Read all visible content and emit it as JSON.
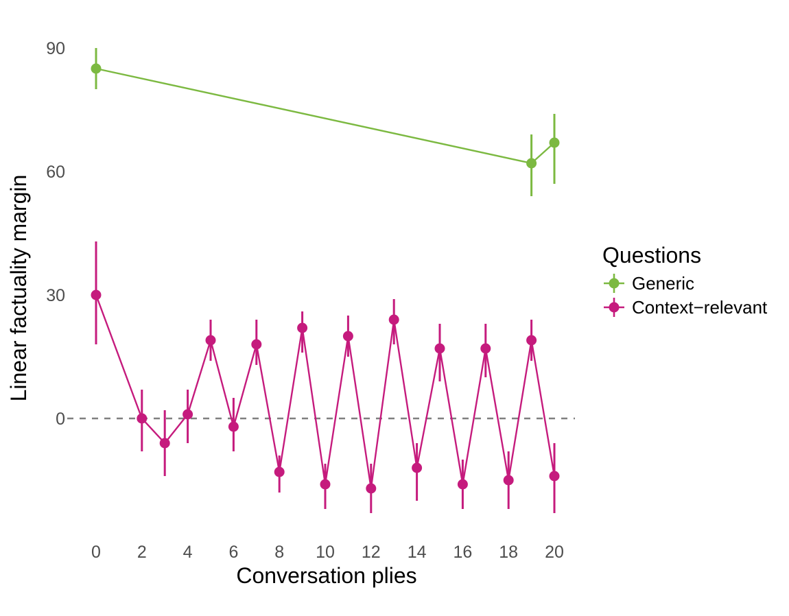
{
  "chart_data": {
    "type": "line",
    "title": "",
    "xlabel": "Conversation plies",
    "ylabel": "Linear factuality margin",
    "x_ticks": [
      0,
      2,
      4,
      6,
      8,
      10,
      12,
      14,
      16,
      18,
      20
    ],
    "y_ticks": [
      0,
      30,
      60,
      90
    ],
    "xlim": [
      -1.3,
      21
    ],
    "ylim": [
      -28,
      99
    ],
    "grid": "off",
    "reference_line": {
      "y": 0,
      "style": "dashed",
      "color": "#7F7F7F"
    },
    "legend": {
      "title": "Questions",
      "position": "right",
      "items": [
        {
          "label": "Generic",
          "color": "#7CB941"
        },
        {
          "label": "Context−relevant",
          "color": "#C51B7D"
        }
      ]
    },
    "series": [
      {
        "name": "Generic",
        "color": "#7CB941",
        "points": [
          {
            "x": 0,
            "y": 85,
            "lo": 80,
            "hi": 90
          },
          {
            "x": 19,
            "y": 62,
            "lo": 54,
            "hi": 69
          },
          {
            "x": 20,
            "y": 67,
            "lo": 57,
            "hi": 74
          }
        ]
      },
      {
        "name": "Context−relevant",
        "color": "#C51B7D",
        "points": [
          {
            "x": 0,
            "y": 30,
            "lo": 18,
            "hi": 43
          },
          {
            "x": 2,
            "y": 0,
            "lo": -8,
            "hi": 7
          },
          {
            "x": 3,
            "y": -6,
            "lo": -14,
            "hi": 2
          },
          {
            "x": 4,
            "y": 1,
            "lo": -6,
            "hi": 7
          },
          {
            "x": 5,
            "y": 19,
            "lo": 14,
            "hi": 24
          },
          {
            "x": 6,
            "y": -2,
            "lo": -8,
            "hi": 5
          },
          {
            "x": 7,
            "y": 18,
            "lo": 13,
            "hi": 24
          },
          {
            "x": 8,
            "y": -13,
            "lo": -18,
            "hi": -9
          },
          {
            "x": 9,
            "y": 22,
            "lo": 16,
            "hi": 26
          },
          {
            "x": 10,
            "y": -16,
            "lo": -22,
            "hi": -11
          },
          {
            "x": 11,
            "y": 20,
            "lo": 15,
            "hi": 25
          },
          {
            "x": 12,
            "y": -17,
            "lo": -23,
            "hi": -11
          },
          {
            "x": 13,
            "y": 24,
            "lo": 18,
            "hi": 29
          },
          {
            "x": 14,
            "y": -12,
            "lo": -20,
            "hi": -6
          },
          {
            "x": 15,
            "y": 17,
            "lo": 9,
            "hi": 23
          },
          {
            "x": 16,
            "y": -16,
            "lo": -22,
            "hi": -10
          },
          {
            "x": 17,
            "y": 17,
            "lo": 10,
            "hi": 23
          },
          {
            "x": 18,
            "y": -15,
            "lo": -22,
            "hi": -8
          },
          {
            "x": 19,
            "y": 19,
            "lo": 14,
            "hi": 24
          },
          {
            "x": 20,
            "y": -14,
            "lo": -23,
            "hi": -6
          }
        ]
      }
    ]
  }
}
